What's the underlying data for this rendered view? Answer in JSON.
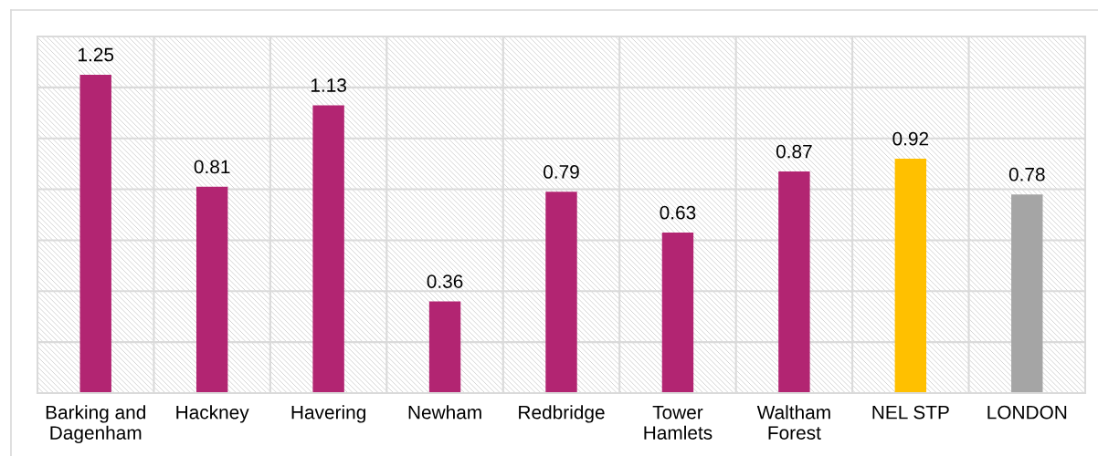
{
  "chart_data": {
    "type": "bar",
    "categories": [
      "Barking and\nDagenham",
      "Hackney",
      "Havering",
      "Newham",
      "Redbridge",
      "Tower\nHamlets",
      "Waltham\nForest",
      "NEL STP",
      "LONDON"
    ],
    "values": [
      1.25,
      0.81,
      1.13,
      0.36,
      0.79,
      0.63,
      0.87,
      0.92,
      0.78
    ],
    "colors": [
      "#b22572",
      "#b22572",
      "#b22572",
      "#b22572",
      "#b22572",
      "#b22572",
      "#b22572",
      "#ffc000",
      "#a5a5a5"
    ],
    "ylim": [
      0,
      1.4
    ],
    "yticks": [
      {
        "value": 0,
        "label": null
      },
      {
        "value": 0.2,
        "label": null
      },
      {
        "value": 0.4,
        "label": null
      },
      {
        "value": 0.6,
        "label": null
      },
      {
        "value": 0.8,
        "label": null
      },
      {
        "value": 1.0,
        "label": null
      },
      {
        "value": 1.2,
        "label": null
      },
      {
        "value": 1.4,
        "label": null
      }
    ],
    "grid": true,
    "data_labels": true,
    "tick_labels": "x"
  }
}
